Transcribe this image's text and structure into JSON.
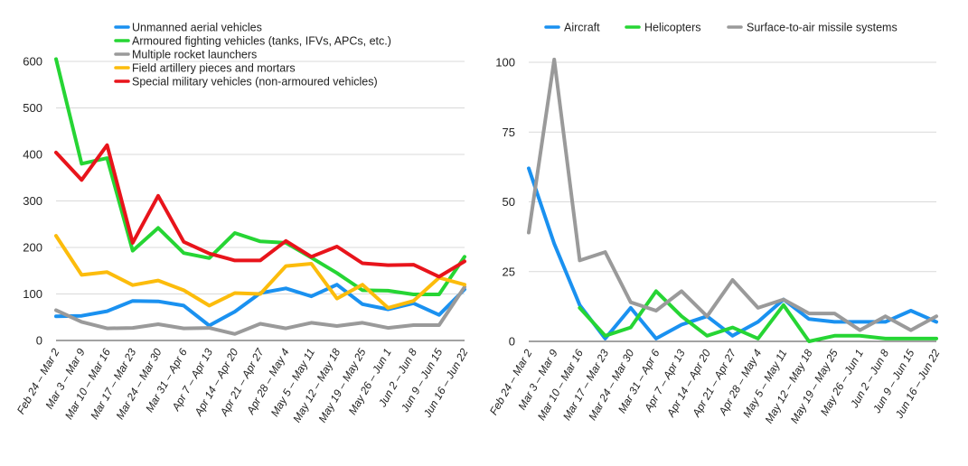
{
  "chart_data": [
    {
      "type": "line",
      "title": "",
      "xlabel": "",
      "ylabel": "",
      "ylim": [
        0,
        600
      ],
      "yticks": [
        0,
        100,
        200,
        300,
        400,
        500,
        600
      ],
      "grid": true,
      "legend_position": "top",
      "categories": [
        "Feb 24 – Mar 2",
        "Mar 3 – Mar 9",
        "Mar 10 – Mar 16",
        "Mar 17 – Mar 23",
        "Mar 24 – Mar 30",
        "Mar 31 – Apr 6",
        "Apr 7 – Apr 13",
        "Apr 14 – Apr 20",
        "Apr 21 – Apr 27",
        "Apr 28 – May 4",
        "May 5 – May 11",
        "May 12 – May 18",
        "May 19 – May 25",
        "May 26 – Jun 1",
        "Jun 2 – Jun 8",
        "Jun 9 – Jun 15",
        "Jun 16 – Jun 22"
      ],
      "series": [
        {
          "name": "Unmanned aerial vehicles",
          "color": "#1a91f0",
          "values": [
            52,
            53,
            63,
            85,
            84,
            75,
            32,
            62,
            102,
            112,
            95,
            120,
            78,
            67,
            80,
            55,
            110
          ]
        },
        {
          "name": "Armoured fighting vehicles (tanks, IFVs, APCs, etc.)",
          "color": "#26d534",
          "values": [
            605,
            380,
            392,
            193,
            242,
            188,
            177,
            231,
            213,
            210,
            178,
            145,
            108,
            107,
            99,
            99,
            180
          ]
        },
        {
          "name": "Multiple rocket launchers",
          "color": "#9a9a9a",
          "values": [
            65,
            40,
            26,
            27,
            35,
            26,
            27,
            14,
            36,
            26,
            38,
            31,
            38,
            27,
            33,
            33,
            115
          ]
        },
        {
          "name": "Field artillery pieces and mortars",
          "color": "#fcbc0c",
          "values": [
            225,
            141,
            147,
            119,
            129,
            108,
            75,
            102,
            100,
            160,
            165,
            90,
            120,
            70,
            85,
            135,
            120
          ]
        },
        {
          "name": "Special military vehicles (non-armoured vehicles)",
          "color": "#e8141b",
          "values": [
            404,
            345,
            420,
            210,
            311,
            212,
            187,
            172,
            172,
            214,
            180,
            202,
            166,
            162,
            163,
            137,
            170
          ]
        }
      ]
    },
    {
      "type": "line",
      "title": "",
      "xlabel": "",
      "ylabel": "",
      "ylim": [
        0,
        100
      ],
      "yticks": [
        0,
        25,
        50,
        75,
        100
      ],
      "grid": true,
      "legend_position": "top",
      "categories": [
        "Feb 24 – Mar 2",
        "Mar 3 – Mar 9",
        "Mar 10 – Mar 16",
        "Mar 17 – Mar 23",
        "Mar 24 – Mar 30",
        "Mar 31 – Apr 6",
        "Apr 7 – Apr 13",
        "Apr 14 – Apr 20",
        "Apr 21 – Apr 27",
        "Apr 28 – May 4",
        "May 5 – May 11",
        "May 12 – May 18",
        "May 19 – May 25",
        "May 26 – Jun 1",
        "Jun 2 – Jun 8",
        "Jun 9 – Jun 15",
        "Jun 16 – Jun 22"
      ],
      "series": [
        {
          "name": "Aircraft",
          "color": "#1a91f0",
          "values": [
            62,
            35,
            13,
            1,
            12,
            1,
            6,
            9,
            2,
            7,
            15,
            8,
            7,
            7,
            7,
            11,
            7
          ]
        },
        {
          "name": "Helicopters",
          "color": "#26d534",
          "values": [
            null,
            null,
            12,
            2,
            5,
            18,
            9,
            2,
            5,
            1,
            13,
            0,
            2,
            2,
            1,
            1,
            1
          ]
        },
        {
          "name": "Surface-to-air missile systems",
          "color": "#9a9a9a",
          "values": [
            39,
            101,
            29,
            32,
            14,
            11,
            18,
            9,
            22,
            12,
            15,
            10,
            10,
            4,
            9,
            4,
            9
          ]
        }
      ]
    }
  ]
}
